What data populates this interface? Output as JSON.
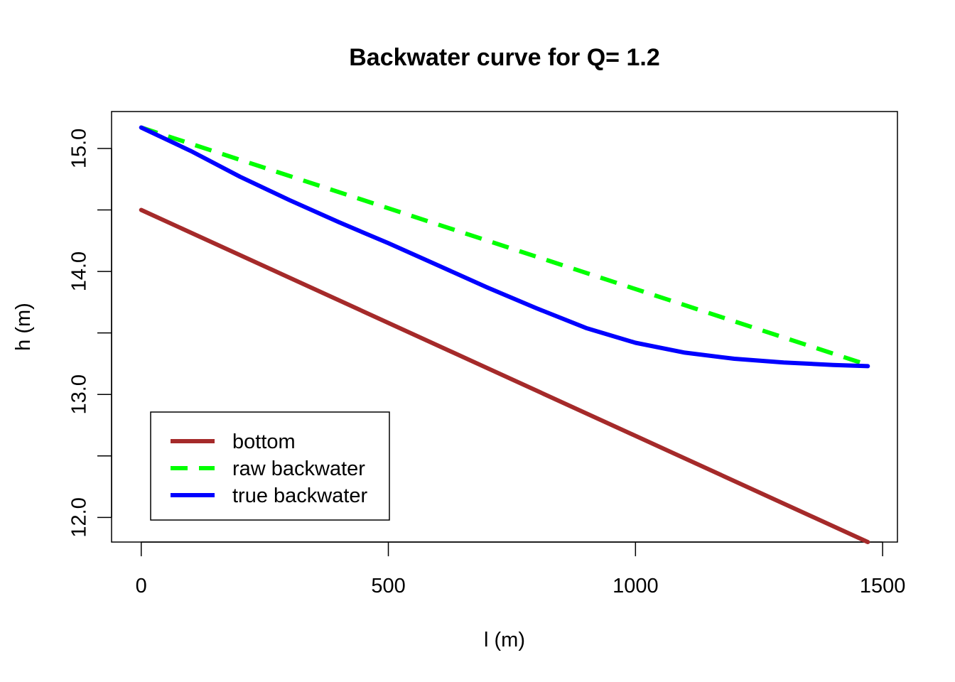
{
  "chart_data": {
    "type": "line",
    "title": "Backwater curve for Q= 1.2",
    "xlabel": "l (m)",
    "ylabel": "h (m)",
    "xlim": [
      -60,
      1530
    ],
    "ylim": [
      11.8,
      15.3
    ],
    "x_ticks": [
      0,
      500,
      1000,
      1500
    ],
    "x_tick_labels": [
      "0",
      "500",
      "1000",
      "1500"
    ],
    "y_ticks": [
      12.0,
      12.5,
      13.0,
      13.5,
      14.0,
      14.5,
      15.0
    ],
    "y_tick_labels": [
      "12.0",
      "",
      "13.0",
      "",
      "14.0",
      "",
      "15.0"
    ],
    "grid": false,
    "legend_position": "bottom-left",
    "series": [
      {
        "name": "bottom",
        "color": "#a52a2a",
        "dash": "solid",
        "x": [
          0,
          1470
        ],
        "y": [
          14.5,
          11.8
        ]
      },
      {
        "name": "raw backwater",
        "color": "#00ff00",
        "dash": "dashed",
        "x": [
          0,
          1470
        ],
        "y": [
          15.17,
          13.24
        ]
      },
      {
        "name": "true backwater",
        "color": "#0000ff",
        "dash": "solid",
        "x": [
          0,
          100,
          200,
          300,
          400,
          500,
          600,
          700,
          800,
          900,
          1000,
          1100,
          1200,
          1300,
          1400,
          1470
        ],
        "y": [
          15.17,
          14.98,
          14.77,
          14.58,
          14.4,
          14.23,
          14.05,
          13.87,
          13.7,
          13.54,
          13.42,
          13.34,
          13.29,
          13.26,
          13.24,
          13.23
        ]
      }
    ]
  }
}
